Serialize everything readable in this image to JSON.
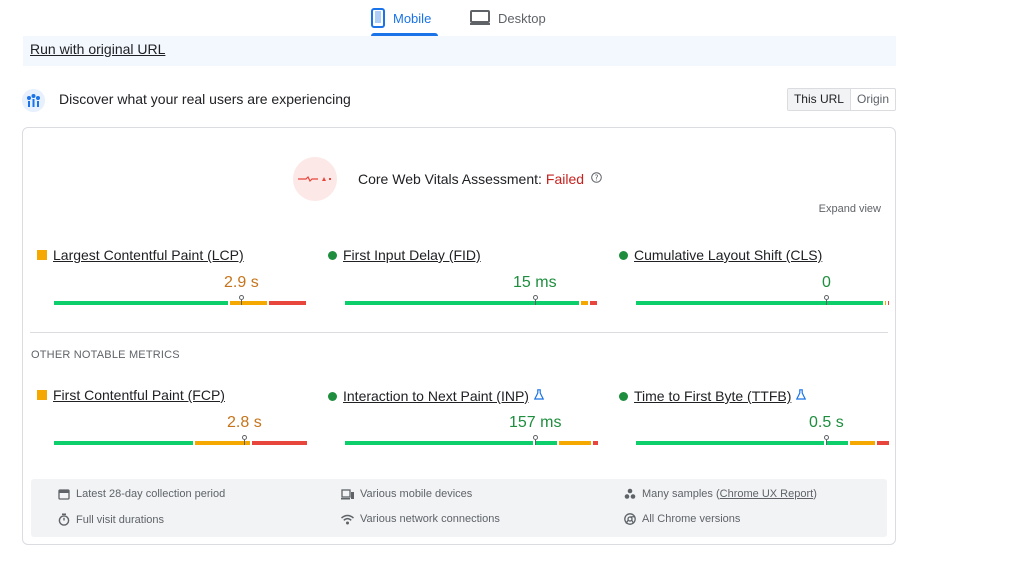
{
  "tabs": {
    "mobile": "Mobile",
    "desktop": "Desktop"
  },
  "banner": {
    "link": "Run with original URL"
  },
  "discover": {
    "title": "Discover what your real users are experiencing",
    "this_url": "This URL",
    "origin": "Origin"
  },
  "assessment": {
    "label": "Core Web Vitals Assessment:",
    "status": "Failed",
    "expand": "Expand view"
  },
  "metrics": [
    {
      "name": "Largest Contentful Paint (LCP)",
      "value": "2.9 s",
      "rating": "needs-improvement",
      "indicator": "square",
      "distribution": [
        0.7,
        0.15,
        0.15
      ],
      "marker": 0.74
    },
    {
      "name": "First Input Delay (FID)",
      "value": "15 ms",
      "rating": "good",
      "indicator": "circle",
      "distribution": [
        0.94,
        0.03,
        0.03
      ],
      "marker": 0.75
    },
    {
      "name": "Cumulative Layout Shift (CLS)",
      "value": "0",
      "rating": "good",
      "indicator": "circle",
      "distribution": [
        0.99,
        0.005,
        0.005
      ],
      "marker": 0.75
    },
    {
      "name": "First Contentful Paint (FCP)",
      "value": "2.8 s",
      "rating": "needs-improvement",
      "indicator": "square",
      "distribution": [
        0.56,
        0.22,
        0.22
      ],
      "marker": 0.75
    },
    {
      "name": "Interaction to Next Paint (INP)",
      "value": "157 ms",
      "rating": "good",
      "indicator": "circle",
      "lab": true,
      "distribution": [
        0.76,
        0.09,
        0.13,
        0.02
      ],
      "marker": 0.75
    },
    {
      "name": "Time to First Byte (TTFB)",
      "value": "0.5 s",
      "rating": "good",
      "indicator": "circle",
      "lab": true,
      "distribution": [
        0.76,
        0.09,
        0.1,
        0.05
      ],
      "marker": 0.75
    }
  ],
  "other_title": "OTHER NOTABLE METRICS",
  "footer": {
    "collection_period": "Latest 28-day collection period",
    "devices": "Various mobile devices",
    "samples_prefix": "Many samples (",
    "samples_link": "Chrome UX Report",
    "samples_suffix": ")",
    "visit_durations": "Full visit durations",
    "network": "Various network connections",
    "chrome_versions": "All Chrome versions"
  },
  "colors": {
    "accent": "#1a73e8",
    "good": "#0cce6b",
    "needs_improvement": "#f4a800",
    "poor": "#e8453c",
    "failed": "#c5221f"
  },
  "icons": [
    "phone-icon",
    "monitor-icon",
    "users-icon",
    "help-icon",
    "flask-icon",
    "calendar-icon",
    "devices-icon",
    "samples-icon",
    "stopwatch-icon",
    "wifi-icon",
    "chrome-icon"
  ]
}
